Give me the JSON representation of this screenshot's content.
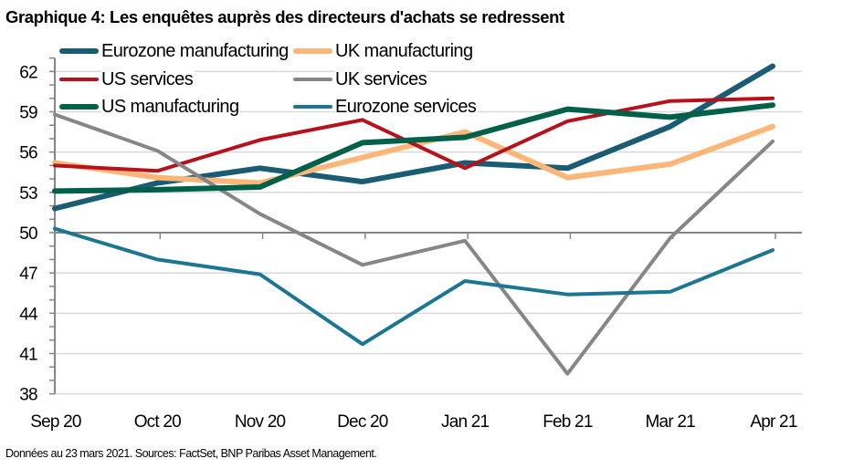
{
  "title": "Graphique 4: Les enquêtes auprès des directeurs d'achats se redressent",
  "source": "Données au 23 mars 2021. Sources: FactSet, BNP Paribas Asset Management.",
  "chart_data": {
    "type": "line",
    "title": "Graphique 4: Les enquêtes auprès des directeurs d'achats se redressent",
    "xlabel": "",
    "ylabel": "",
    "categories": [
      "Sep 20",
      "Oct 20",
      "Nov 20",
      "Dec 20",
      "Jan 21",
      "Feb 21",
      "Mar 21",
      "Apr 21"
    ],
    "ylim": [
      38,
      63
    ],
    "yticks": [
      38,
      41,
      44,
      47,
      50,
      53,
      56,
      59,
      62
    ],
    "ytick_labels": [
      "38",
      "41",
      "44",
      "47",
      "50",
      "53",
      "56",
      "59",
      "62"
    ],
    "x_axis_crosses_at": 50,
    "grid": true,
    "legend_position": "top-left, two columns",
    "series": [
      {
        "name": "Eurozone manufacturing",
        "color": "#1a5c74",
        "width": "thick",
        "values": [
          51.8,
          53.7,
          54.8,
          53.8,
          55.2,
          54.8,
          57.9,
          62.4
        ]
      },
      {
        "name": "UK manufacturing",
        "color": "#fbb678",
        "width": "thick",
        "values": [
          55.2,
          54.1,
          53.7,
          55.6,
          57.5,
          54.1,
          55.1,
          57.9
        ]
      },
      {
        "name": "US services",
        "color": "#b5121b",
        "width": "medium",
        "values": [
          55.0,
          54.6,
          56.9,
          58.4,
          54.8,
          58.3,
          59.8,
          60.0
        ]
      },
      {
        "name": "UK services",
        "color": "#868686",
        "width": "medium",
        "values": [
          58.8,
          56.1,
          51.4,
          47.6,
          49.4,
          39.5,
          49.6,
          56.8
        ]
      },
      {
        "name": "US manufacturing",
        "color": "#00604a",
        "width": "thick",
        "values": [
          53.1,
          53.2,
          53.4,
          56.7,
          57.1,
          59.2,
          58.6,
          59.5
        ]
      },
      {
        "name": "Eurozone services",
        "color": "#1c7693",
        "width": "medium",
        "values": [
          50.3,
          48.0,
          46.9,
          41.7,
          46.4,
          45.4,
          45.6,
          48.7
        ]
      }
    ]
  }
}
